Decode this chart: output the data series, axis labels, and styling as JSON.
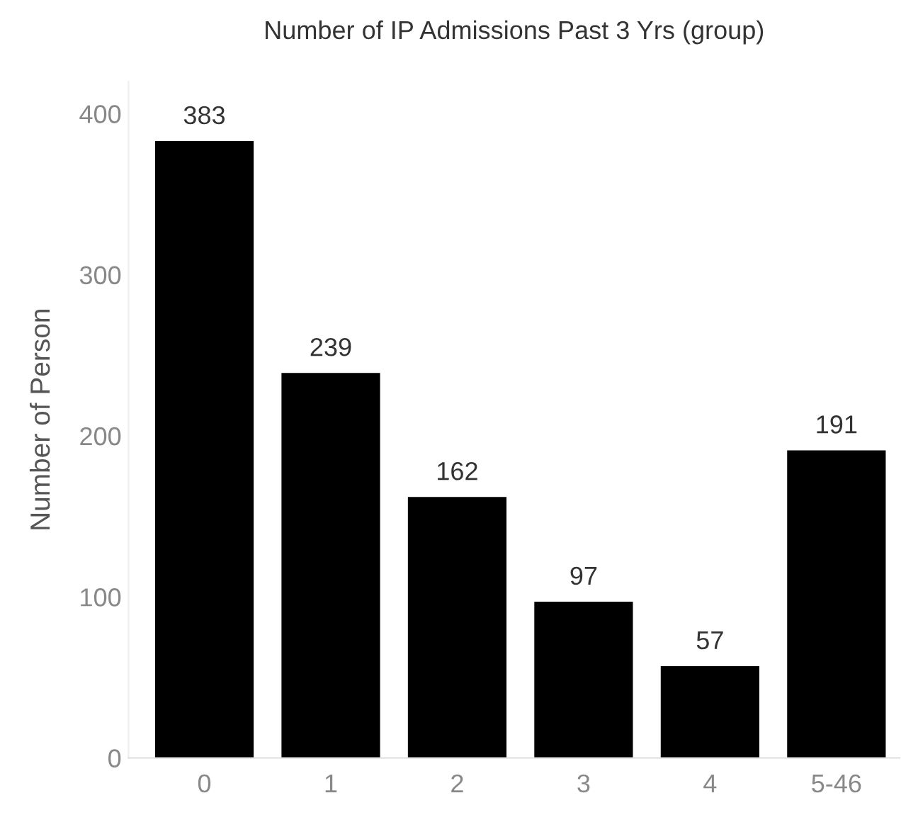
{
  "chart_data": {
    "type": "bar",
    "title": "Number of IP Admissions Past 3 Yrs (group)",
    "ylabel": "Number of Person",
    "categories": [
      "0",
      "1",
      "2",
      "3",
      "4",
      "5-46"
    ],
    "values": [
      383,
      239,
      162,
      97,
      57,
      191
    ],
    "color": "#000000",
    "ylim": [
      0,
      420
    ],
    "yticks": [
      0,
      100,
      200,
      300,
      400
    ],
    "grid": false,
    "data_labels": true
  }
}
